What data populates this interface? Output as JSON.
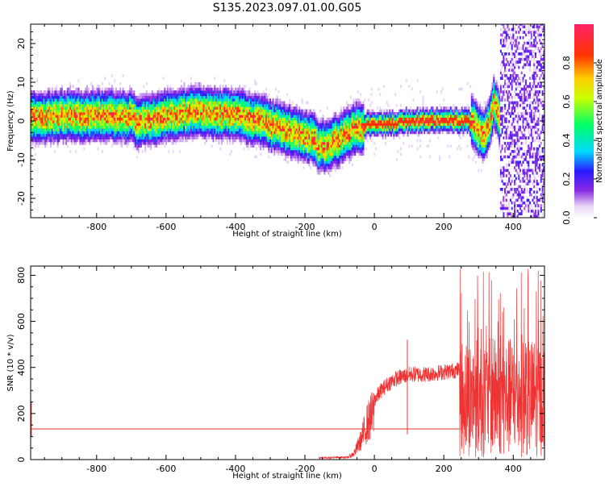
{
  "chart_data": [
    {
      "type": "heatmap",
      "title": "S135.2023.097.01.00.G05",
      "xlabel": "Height of straight line (km)",
      "ylabel": "Frequency (Hz)",
      "xlim": [
        -990,
        490
      ],
      "ylim": [
        -25,
        25
      ],
      "xticks": [
        -800,
        -600,
        -400,
        -200,
        0,
        200,
        400
      ],
      "yticks": [
        -20,
        -10,
        0,
        10,
        20
      ],
      "colorbar": {
        "label": "Normalized spectral amplitude",
        "range": [
          0,
          1
        ],
        "ticks": [
          0.0,
          0.2,
          0.4,
          0.6,
          0.8
        ],
        "colormap": "rainbow-white"
      },
      "ridge": {
        "x": [
          -990,
          -900,
          -800,
          -700,
          -680,
          -600,
          -500,
          -400,
          -340,
          -300,
          -250,
          -200,
          -170,
          -160,
          -150,
          -120,
          -100,
          -80,
          -50,
          -20,
          0,
          50,
          100,
          150,
          200,
          270,
          290,
          310,
          330,
          345,
          360,
          370,
          380,
          390,
          400
        ],
        "y": [
          1,
          1.2,
          1.5,
          1.2,
          -0.5,
          1.5,
          2.5,
          1.5,
          0.5,
          -1,
          -2.5,
          -4,
          -5,
          -7,
          -6.5,
          -5.5,
          -4.5,
          -3,
          -2,
          -1,
          -0.8,
          -0.5,
          0,
          0.2,
          0.2,
          0.2,
          -1,
          -4,
          -1,
          5,
          1,
          2,
          -1,
          1,
          0
        ]
      }
    },
    {
      "type": "line",
      "xlabel": "Height of straight line (km)",
      "ylabel": "SNR (10 * v/v)",
      "xlim": [
        -990,
        490
      ],
      "ylim": [
        0,
        840
      ],
      "xticks": [
        -800,
        -600,
        -400,
        -200,
        0,
        200,
        400
      ],
      "yticks": [
        0,
        200,
        400,
        600,
        800
      ],
      "color": "#ee3333",
      "baseline": {
        "x": [
          -990,
          245
        ],
        "y": [
          133,
          133
        ]
      },
      "envelope": {
        "x": [
          -160,
          -80,
          -60,
          -40,
          -20,
          0,
          20,
          40,
          60,
          80,
          100,
          150,
          200,
          245,
          260,
          300,
          350,
          400,
          450,
          490
        ],
        "y": [
          8,
          10,
          30,
          100,
          200,
          260,
          300,
          330,
          350,
          360,
          370,
          370,
          380,
          390,
          300,
          250,
          250,
          250,
          250,
          250
        ]
      }
    }
  ]
}
